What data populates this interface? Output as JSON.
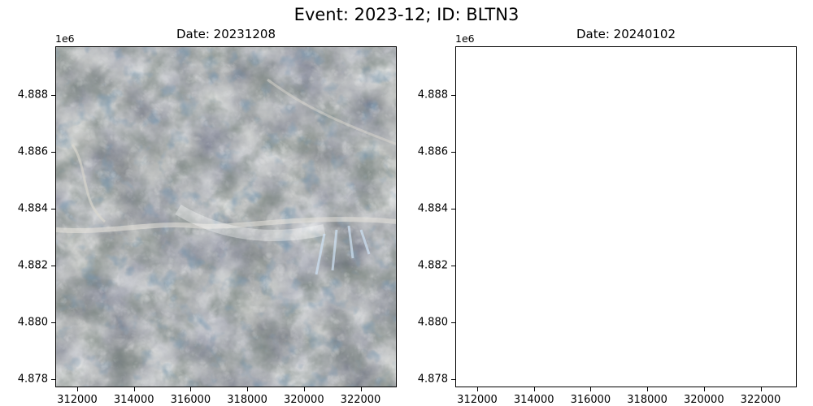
{
  "figure": {
    "title": "Event: 2023-12; ID: BLTN3"
  },
  "axes": {
    "y_exponent": "1e6",
    "x_ticks": [
      "312000",
      "314000",
      "316000",
      "318000",
      "320000",
      "322000"
    ],
    "y_ticks": [
      "4.888",
      "4.886",
      "4.884",
      "4.882",
      "4.880",
      "4.878"
    ]
  },
  "panels": [
    {
      "title": "Date: 20231208",
      "has_image": true
    },
    {
      "title": "Date: 20240102",
      "has_image": false
    }
  ]
}
